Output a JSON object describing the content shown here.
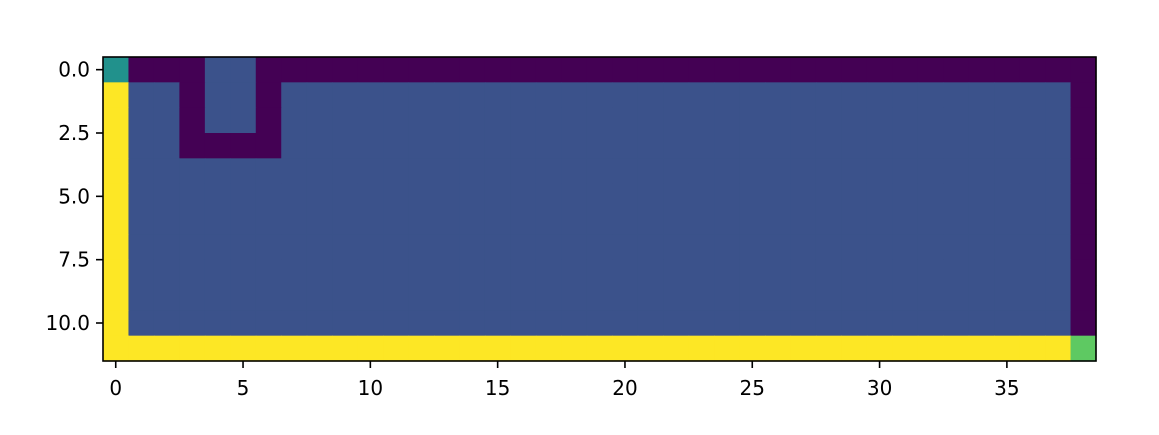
{
  "chart_data": {
    "type": "heatmap",
    "title": "",
    "xlabel": "",
    "ylabel": "",
    "colormap": "viridis",
    "n_cols": 39,
    "n_rows": 12,
    "xlim": [
      -0.5,
      38.5
    ],
    "ylim": [
      11.5,
      -0.5
    ],
    "x_ticks": [
      0,
      5,
      10,
      15,
      20,
      25,
      30,
      35
    ],
    "x_tick_labels": [
      "0",
      "5",
      "10",
      "15",
      "20",
      "25",
      "30",
      "35"
    ],
    "y_ticks": [
      0.0,
      2.5,
      5.0,
      7.5,
      10.0
    ],
    "y_tick_labels": [
      "0.0",
      "2.5",
      "5.0",
      "7.5",
      "10.0"
    ],
    "values": [
      [
        2,
        0,
        0,
        0,
        1,
        1,
        0,
        0,
        0,
        0,
        0,
        0,
        0,
        0,
        0,
        0,
        0,
        0,
        0,
        0,
        0,
        0,
        0,
        0,
        0,
        0,
        0,
        0,
        0,
        0,
        0,
        0,
        0,
        0,
        0,
        0,
        0,
        0,
        0
      ],
      [
        4,
        1,
        1,
        0,
        1,
        1,
        0,
        1,
        1,
        1,
        1,
        1,
        1,
        1,
        1,
        1,
        1,
        1,
        1,
        1,
        1,
        1,
        1,
        1,
        1,
        1,
        1,
        1,
        1,
        1,
        1,
        1,
        1,
        1,
        1,
        1,
        1,
        1,
        0
      ],
      [
        4,
        1,
        1,
        0,
        1,
        1,
        0,
        1,
        1,
        1,
        1,
        1,
        1,
        1,
        1,
        1,
        1,
        1,
        1,
        1,
        1,
        1,
        1,
        1,
        1,
        1,
        1,
        1,
        1,
        1,
        1,
        1,
        1,
        1,
        1,
        1,
        1,
        1,
        0
      ],
      [
        4,
        1,
        1,
        0,
        0,
        0,
        0,
        1,
        1,
        1,
        1,
        1,
        1,
        1,
        1,
        1,
        1,
        1,
        1,
        1,
        1,
        1,
        1,
        1,
        1,
        1,
        1,
        1,
        1,
        1,
        1,
        1,
        1,
        1,
        1,
        1,
        1,
        1,
        0
      ],
      [
        4,
        1,
        1,
        1,
        1,
        1,
        1,
        1,
        1,
        1,
        1,
        1,
        1,
        1,
        1,
        1,
        1,
        1,
        1,
        1,
        1,
        1,
        1,
        1,
        1,
        1,
        1,
        1,
        1,
        1,
        1,
        1,
        1,
        1,
        1,
        1,
        1,
        1,
        0
      ],
      [
        4,
        1,
        1,
        1,
        1,
        1,
        1,
        1,
        1,
        1,
        1,
        1,
        1,
        1,
        1,
        1,
        1,
        1,
        1,
        1,
        1,
        1,
        1,
        1,
        1,
        1,
        1,
        1,
        1,
        1,
        1,
        1,
        1,
        1,
        1,
        1,
        1,
        1,
        0
      ],
      [
        4,
        1,
        1,
        1,
        1,
        1,
        1,
        1,
        1,
        1,
        1,
        1,
        1,
        1,
        1,
        1,
        1,
        1,
        1,
        1,
        1,
        1,
        1,
        1,
        1,
        1,
        1,
        1,
        1,
        1,
        1,
        1,
        1,
        1,
        1,
        1,
        1,
        1,
        0
      ],
      [
        4,
        1,
        1,
        1,
        1,
        1,
        1,
        1,
        1,
        1,
        1,
        1,
        1,
        1,
        1,
        1,
        1,
        1,
        1,
        1,
        1,
        1,
        1,
        1,
        1,
        1,
        1,
        1,
        1,
        1,
        1,
        1,
        1,
        1,
        1,
        1,
        1,
        1,
        0
      ],
      [
        4,
        1,
        1,
        1,
        1,
        1,
        1,
        1,
        1,
        1,
        1,
        1,
        1,
        1,
        1,
        1,
        1,
        1,
        1,
        1,
        1,
        1,
        1,
        1,
        1,
        1,
        1,
        1,
        1,
        1,
        1,
        1,
        1,
        1,
        1,
        1,
        1,
        1,
        0
      ],
      [
        4,
        1,
        1,
        1,
        1,
        1,
        1,
        1,
        1,
        1,
        1,
        1,
        1,
        1,
        1,
        1,
        1,
        1,
        1,
        1,
        1,
        1,
        1,
        1,
        1,
        1,
        1,
        1,
        1,
        1,
        1,
        1,
        1,
        1,
        1,
        1,
        1,
        1,
        0
      ],
      [
        4,
        1,
        1,
        1,
        1,
        1,
        1,
        1,
        1,
        1,
        1,
        1,
        1,
        1,
        1,
        1,
        1,
        1,
        1,
        1,
        1,
        1,
        1,
        1,
        1,
        1,
        1,
        1,
        1,
        1,
        1,
        1,
        1,
        1,
        1,
        1,
        1,
        1,
        0
      ],
      [
        4,
        4,
        4,
        4,
        4,
        4,
        4,
        4,
        4,
        4,
        4,
        4,
        4,
        4,
        4,
        4,
        4,
        4,
        4,
        4,
        4,
        4,
        4,
        4,
        4,
        4,
        4,
        4,
        4,
        4,
        4,
        4,
        4,
        4,
        4,
        4,
        4,
        4,
        3
      ]
    ],
    "value_colors": {
      "0": "#440154",
      "1": "#3b528b",
      "2": "#21918c",
      "3": "#5ec962",
      "4": "#fde725"
    }
  }
}
